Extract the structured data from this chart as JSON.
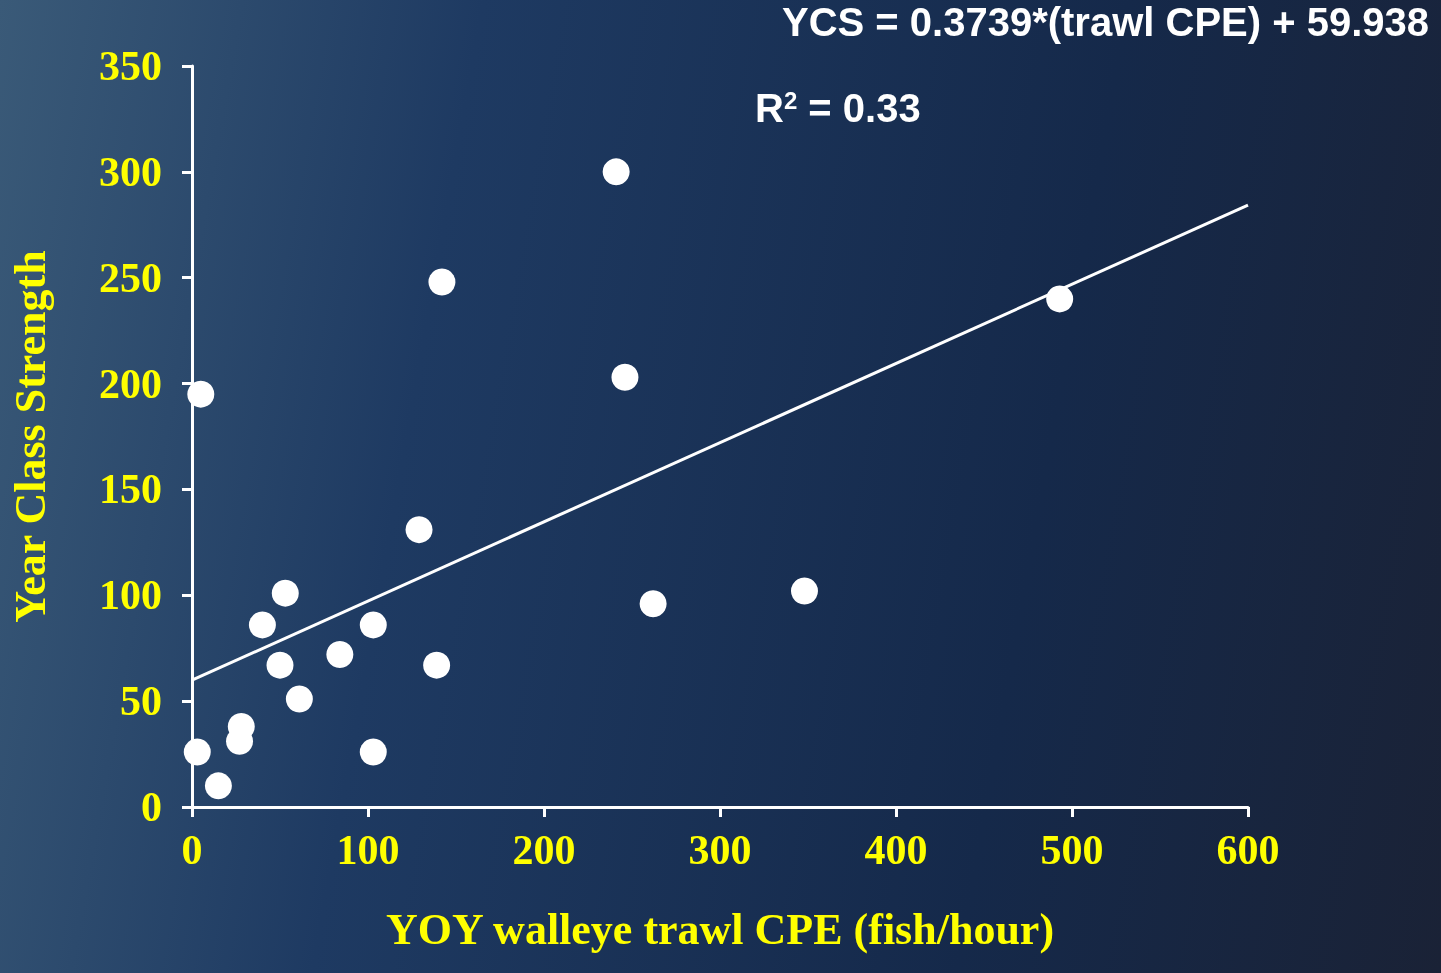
{
  "chart_data": {
    "type": "scatter",
    "xlabel": "YOY walleye trawl CPE (fish/hour)",
    "ylabel": "Year Class Strength",
    "annotations": [
      "YCS = 0.3739*(trawl CPE) + 59.938",
      "R$^{2}$ = 0.33"
    ],
    "xlim": [
      0,
      600
    ],
    "xticks": [
      0,
      100,
      200,
      300,
      400,
      500,
      600
    ],
    "ylim": [
      0,
      350
    ],
    "yticks": [
      0,
      50,
      100,
      150,
      200,
      250,
      300,
      350
    ],
    "grid": false,
    "series": [
      {
        "marker": "circle",
        "color": "#ffffff",
        "x": [
          5,
          241,
          142,
          246,
          493,
          129,
          53,
          262,
          348,
          40,
          103,
          84,
          50,
          139,
          61,
          28,
          27,
          3,
          103,
          15
        ],
        "values": [
          195,
          300,
          248,
          203,
          240,
          131,
          101,
          96,
          102,
          86,
          86,
          72,
          67,
          67,
          51,
          38,
          31,
          26,
          26,
          10
        ]
      },
      {
        "type": "line",
        "marker": "none",
        "line_style": "solid",
        "color": "#ffffff",
        "x": [
          0,
          600
        ],
        "values": [
          59.9,
          284.3
        ]
      }
    ]
  }
}
